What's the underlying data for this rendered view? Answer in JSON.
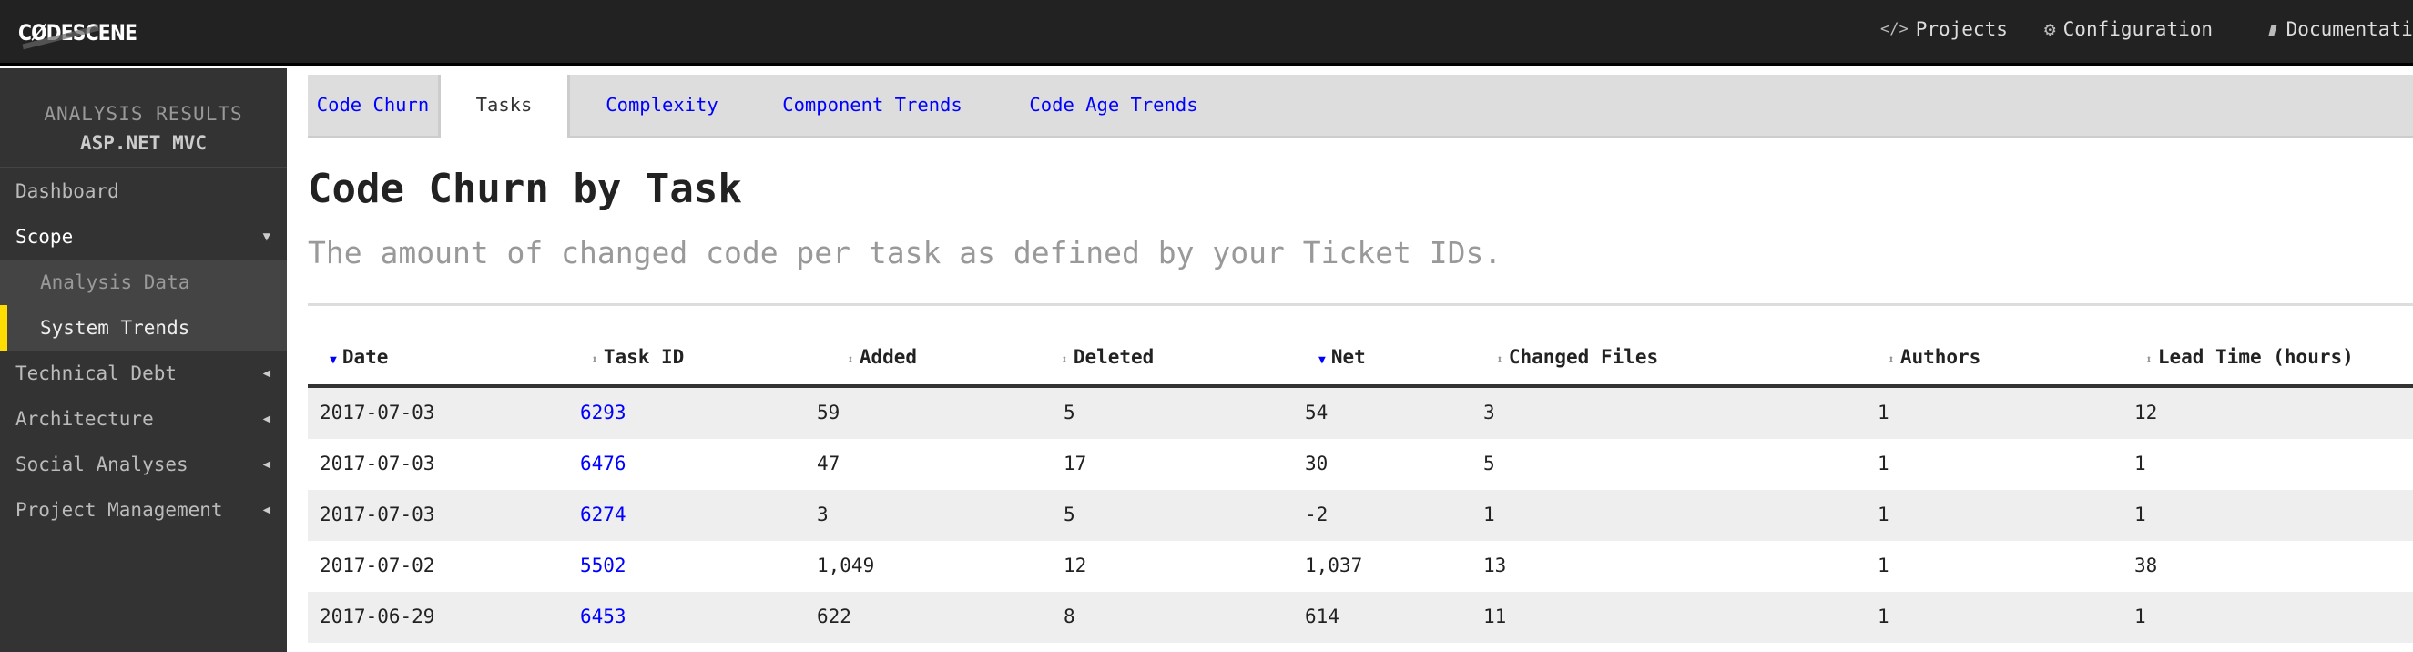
{
  "topbar": {
    "logo": "CØDESCENE",
    "nav": [
      {
        "icon": "code-icon",
        "glyph": "</>",
        "label": "Projects"
      },
      {
        "icon": "gears-icon",
        "glyph": "⚙",
        "label": "Configuration"
      },
      {
        "icon": "book-icon",
        "glyph": "▮",
        "label": "Documentati"
      }
    ]
  },
  "sidebar": {
    "title": "ANALYSIS RESULTS",
    "project": "ASP.NET MVC",
    "items": [
      {
        "label": "Dashboard",
        "type": "item"
      },
      {
        "label": "Scope",
        "type": "open",
        "arrow": "▼"
      },
      {
        "label": "Analysis Data",
        "type": "sub"
      },
      {
        "label": "System Trends",
        "type": "sub-active"
      },
      {
        "label": "Technical Debt",
        "type": "item",
        "arrow": "◀"
      },
      {
        "label": "Architecture",
        "type": "item",
        "arrow": "◀"
      },
      {
        "label": "Social Analyses",
        "type": "item",
        "arrow": "◀"
      },
      {
        "label": "Project Management",
        "type": "item",
        "arrow": "◀"
      }
    ]
  },
  "tabs": [
    "Code Churn",
    "Tasks",
    "Complexity",
    "Component Trends",
    "Code Age Trends"
  ],
  "active_tab": "Tasks",
  "page": {
    "title": "Code Churn by Task",
    "subtitle": "The amount of changed code per task as defined by your Ticket IDs."
  },
  "table": {
    "columns": [
      {
        "label": "Date",
        "sort": "desc"
      },
      {
        "label": "Task ID",
        "sort": "none"
      },
      {
        "label": "Added",
        "sort": "none"
      },
      {
        "label": "Deleted",
        "sort": "none"
      },
      {
        "label": "Net",
        "sort": "desc"
      },
      {
        "label": "Changed Files",
        "sort": "none"
      },
      {
        "label": "Authors",
        "sort": "none"
      },
      {
        "label": "Lead Time (hours)",
        "sort": "none"
      }
    ],
    "rows": [
      [
        "2017-07-03",
        "6293",
        "59",
        "5",
        "54",
        "3",
        "1",
        "12"
      ],
      [
        "2017-07-03",
        "6476",
        "47",
        "17",
        "30",
        "5",
        "1",
        "1"
      ],
      [
        "2017-07-03",
        "6274",
        "3",
        "5",
        "-2",
        "1",
        "1",
        "1"
      ],
      [
        "2017-07-02",
        "5502",
        "1,049",
        "12",
        "1,037",
        "13",
        "1",
        "38"
      ],
      [
        "2017-06-29",
        "6453",
        "622",
        "8",
        "614",
        "11",
        "1",
        "1"
      ]
    ]
  },
  "colors": {
    "link": "#0000ff",
    "accent": "#ffdd00",
    "topbar": "#222222",
    "sidebar": "#333333"
  }
}
